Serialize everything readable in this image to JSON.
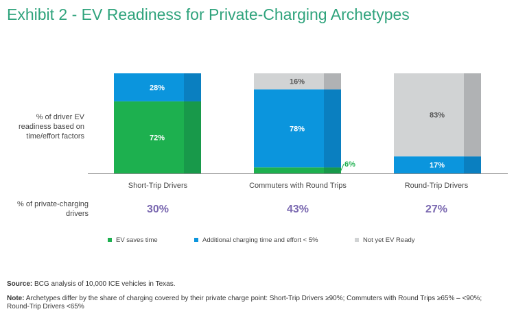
{
  "title": "Exhibit 2 - EV Readiness for Private-Charging Archetypes",
  "chart_data": {
    "type": "bar",
    "stacked": true,
    "ylabel": "% of driver EV readiness based on time/effort factors",
    "categories": [
      "Short-Trip Drivers",
      "Commuters with Round Trips",
      "Round-Trip Drivers"
    ],
    "series": [
      {
        "name": "EV saves time",
        "color": "#1db04f",
        "values": [
          72,
          6,
          0
        ],
        "labels": [
          "72%",
          "6%",
          ""
        ]
      },
      {
        "name": "Additional charging time and effort < 5%",
        "color": "#0b95dd",
        "values": [
          28,
          78,
          17
        ],
        "labels": [
          "28%",
          "78%",
          "17%"
        ]
      },
      {
        "name": "Not yet EV Ready",
        "color": "#d1d3d4",
        "values": [
          0,
          16,
          83
        ],
        "labels": [
          "",
          "16%",
          "83%"
        ]
      }
    ],
    "ylim": [
      0,
      100
    ],
    "legend_position": "bottom"
  },
  "private_charging": {
    "label": "% of private-charging drivers",
    "values": [
      "30%",
      "43%",
      "27%"
    ]
  },
  "footer": {
    "source_label": "Source:",
    "source_text": "BCG analysis of 10,000 ICE vehicles in Texas.",
    "note_label": "Note:",
    "note_text": "Archetypes differ by the share of charging covered by their private charge point: Short-Trip Drivers ≥90%; Commuters with Round Trips ≥65% – <90%; Round-Trip Drivers <65%"
  }
}
